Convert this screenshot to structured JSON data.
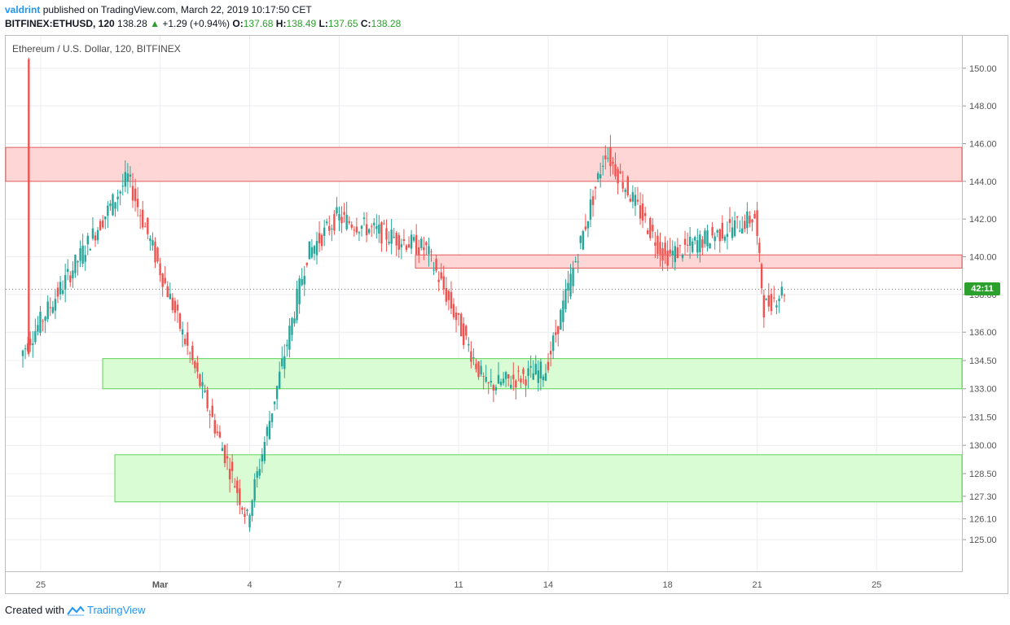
{
  "header": {
    "author": "valdrint",
    "published": "published on TradingView.com, March 22, 2019 10:17:50 CET",
    "symbol": "BITFINEX:ETHUSD, 120",
    "last": "138.28",
    "change": "+1.29 (+0.94%)",
    "o_label": "O:",
    "o_value": "137.68",
    "h_label": "H:",
    "h_value": "138.49",
    "l_label": "L:",
    "l_value": "137.65",
    "c_label": "C:",
    "c_value": "138.28"
  },
  "footer": {
    "created_with": "Created with",
    "brand": "TradingView"
  },
  "countdown": "42:11",
  "colors": {
    "up": "#26a69a",
    "down": "#ef5350",
    "resistance_fill": "#ffd6d6",
    "resistance_line": "#e05a5a",
    "support_fill": "#d9fcd4",
    "support_line": "#5fd35a",
    "grid": "#ececf0",
    "countdown_bg": "#2ca02c"
  },
  "chart_data": {
    "type": "candlestick",
    "title": "Ethereum / U.S. Dollar, 120, BITFINEX",
    "y_ticks": [
      150.0,
      148.0,
      146.0,
      144.0,
      142.0,
      140.0,
      138.0,
      136.0,
      134.5,
      133.0,
      131.5,
      130.0,
      128.5,
      127.3,
      126.1,
      125.0
    ],
    "x_ticks": [
      "25",
      "Mar",
      "4",
      "7",
      "11",
      "14",
      "18",
      "21",
      "25"
    ],
    "last_price": 138.28,
    "zones": [
      {
        "kind": "resistance",
        "low": 144.0,
        "high": 145.8
      },
      {
        "kind": "resistance",
        "low": 139.4,
        "high": 140.1
      },
      {
        "kind": "support",
        "low": 133.0,
        "high": 134.6
      },
      {
        "kind": "support",
        "low": 127.0,
        "high": 129.5
      }
    ],
    "key_points": [
      {
        "time": "Feb 24",
        "price": 150.5
      },
      {
        "time": "Feb 24",
        "price": 134.8
      },
      {
        "time": "Feb 28",
        "price": 144.2
      },
      {
        "time": "Mar 4",
        "price": 126.1
      },
      {
        "time": "Mar 6",
        "price": 140.1
      },
      {
        "time": "Mar 7",
        "price": 142.1
      },
      {
        "time": "Mar 10",
        "price": 140.4
      },
      {
        "time": "Mar 12",
        "price": 133.1
      },
      {
        "time": "Mar 14",
        "price": 134.0
      },
      {
        "time": "Mar 16",
        "price": 145.6
      },
      {
        "time": "Mar 18",
        "price": 140.0
      },
      {
        "time": "Mar 21",
        "price": 142.1
      },
      {
        "time": "Mar 21",
        "price": 137.3
      },
      {
        "time": "Mar 22",
        "price": 138.28
      }
    ]
  }
}
